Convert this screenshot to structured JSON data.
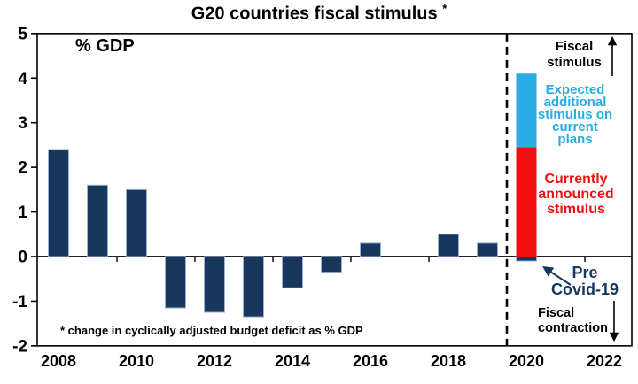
{
  "header": {
    "title": "G20 countries fiscal stimulus",
    "title_note": "*"
  },
  "plot": {
    "unit_label": "% GDP",
    "footnote": "* change in cyclically adjusted budget deficit as % GDP"
  },
  "annotations": {
    "fiscal_stimulus": "Fiscal stimulus",
    "expected_additional": "Expected additional stimulus on current plans",
    "currently_announced": "Currently announced stimulus",
    "pre_covid": "Pre Covid-19",
    "fiscal_contraction": "Fiscal contraction"
  },
  "colors": {
    "navy": "#17375e",
    "red": "#f01010",
    "blue": "#29ace3",
    "navy_bar_edge": "#9fb1d4",
    "axis": "#000000"
  },
  "chart_data": {
    "type": "bar",
    "title": "G20 countries fiscal stimulus *",
    "xlabel": "",
    "ylabel": "% GDP",
    "ylim": [
      -2,
      5
    ],
    "y_ticks": [
      5,
      4,
      3,
      2,
      1,
      0,
      -1,
      -2
    ],
    "x_tick_labels": [
      "2008",
      "2010",
      "2012",
      "2014",
      "2016",
      "2018",
      "2020",
      "2022"
    ],
    "x_label_years": [
      2008,
      2010,
      2012,
      2014,
      2016,
      2018,
      2020,
      2022
    ],
    "categories": [
      2008,
      2009,
      2010,
      2011,
      2012,
      2013,
      2014,
      2015,
      2016,
      2017,
      2018,
      2019,
      2020
    ],
    "series": [
      {
        "name": "Change in deficit (2020 = Pre Covid-19)",
        "color": "navy",
        "values": [
          2.4,
          1.6,
          1.5,
          -1.15,
          -1.25,
          -1.35,
          -0.7,
          -0.35,
          0.3,
          0,
          0.5,
          0.3,
          -0.1
        ]
      },
      {
        "name": "Currently announced stimulus",
        "color": "red",
        "values": [
          0,
          0,
          0,
          0,
          0,
          0,
          0,
          0,
          0,
          0,
          0,
          0,
          2.45
        ]
      },
      {
        "name": "Expected additional stimulus on current plans",
        "color": "blue",
        "values": [
          0,
          0,
          0,
          0,
          0,
          0,
          0,
          0,
          0,
          0,
          0,
          0,
          1.65
        ]
      }
    ],
    "divider_year": 2019.5,
    "zero_line_boundary_ticks": [
      2009.5,
      2011.5,
      2013.5,
      2015.5,
      2017.5,
      2021.5
    ],
    "grid": false,
    "legend": false
  }
}
